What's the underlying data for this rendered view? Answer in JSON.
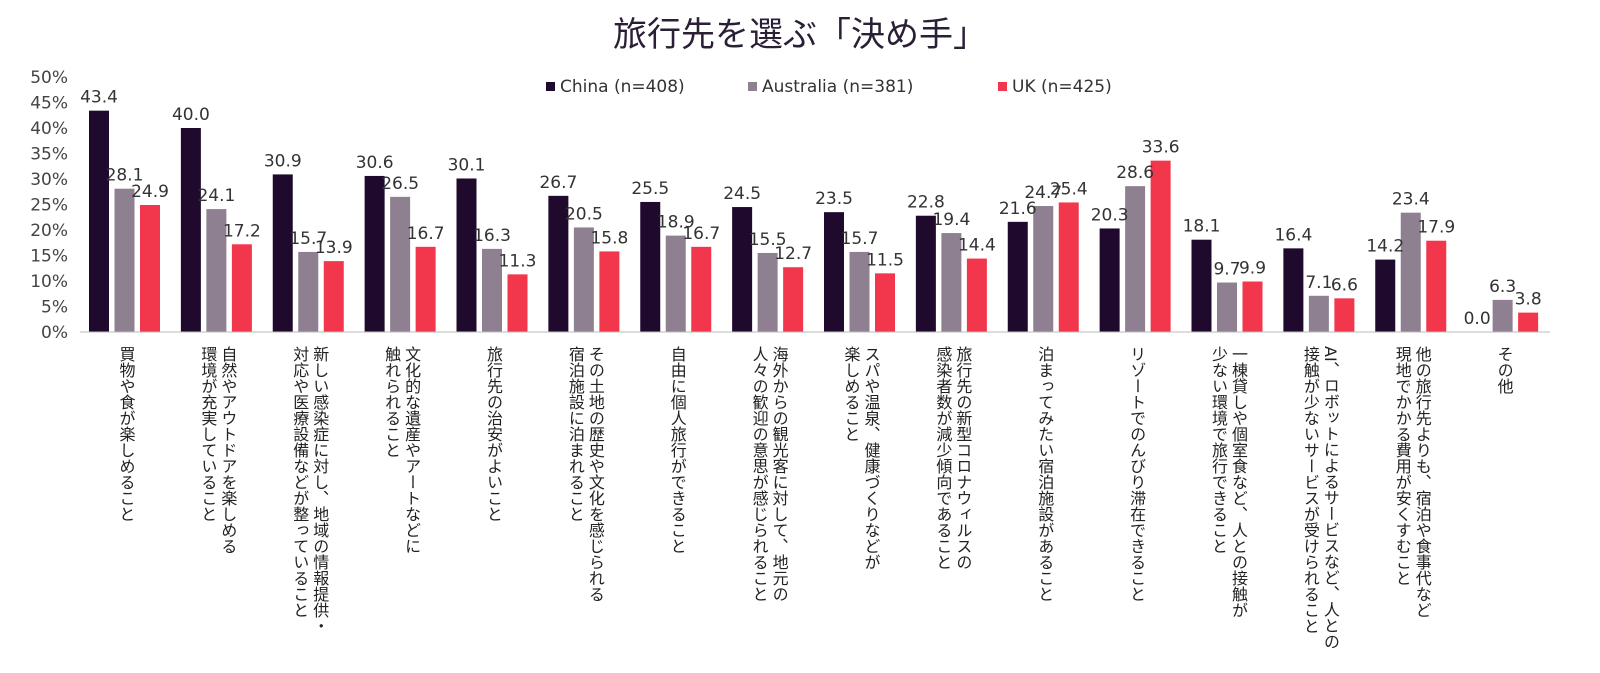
{
  "chart_data": {
    "type": "bar",
    "title": "旅行先を選ぶ「決め手」",
    "xlabel": "",
    "ylabel": "",
    "ylim": [
      0,
      50
    ],
    "yticks": [
      "0%",
      "5%",
      "10%",
      "15%",
      "20%",
      "25%",
      "30%",
      "35%",
      "40%",
      "45%",
      "50%"
    ],
    "grid": false,
    "legend_position": "top",
    "categories": [
      [
        "買物や食が楽しめること"
      ],
      [
        "自然やアウトドアを楽しめる",
        "環境が充実していること"
      ],
      [
        "新しい感染症に対し、地域の情報提供・",
        "対応や医療設備などが整っていること"
      ],
      [
        "文化的な遺産やアートなどに",
        "触れられること"
      ],
      [
        "旅行先の治安がよいこと"
      ],
      [
        "その土地の歴史や文化を感じられる",
        "宿泊施設に泊まれること"
      ],
      [
        "自由に個人旅行ができること"
      ],
      [
        "海外からの観光客に対して、地元の",
        "人々の歓迎の意思が感じられること"
      ],
      [
        "スパや温泉、健康づくりなどが",
        "楽しめること"
      ],
      [
        "旅行先の新型コロナウィルスの",
        "感染者数が減少傾向であること"
      ],
      [
        "泊まってみたい宿泊施設があること"
      ],
      [
        "リゾートでのんびり滞在できること"
      ],
      [
        "一棟貸しや個室食など、人との接触が",
        "少ない環境で旅行できること"
      ],
      [
        "AI、ロボットによるサービスなど、人との",
        "接触が少ないサービスが受けられること"
      ],
      [
        "他の旅行先よりも、宿泊や食事代など",
        "現地でかかる費用が安くすむこと"
      ],
      [
        "その他"
      ]
    ],
    "series": [
      {
        "name": "China (n=408)",
        "color": "#1f0a2e",
        "values": [
          43.4,
          40.0,
          30.9,
          30.6,
          30.1,
          26.7,
          25.5,
          24.5,
          23.5,
          22.8,
          21.6,
          20.3,
          18.1,
          16.4,
          14.2,
          0.0
        ],
        "labels": [
          "43.4",
          "40.0",
          "30.9",
          "30.6",
          "30.1",
          "26.7",
          "25.5",
          "24.5",
          "23.5",
          "22.8",
          "21.6",
          "20.3",
          "18.1",
          "16.4",
          "14.2",
          "0.0"
        ]
      },
      {
        "name": "Australia (n=381)",
        "color": "#8e8091",
        "values": [
          28.1,
          24.1,
          15.7,
          26.5,
          16.3,
          20.5,
          18.9,
          15.5,
          15.7,
          19.4,
          24.7,
          28.6,
          9.7,
          7.1,
          23.4,
          6.3
        ],
        "labels": [
          "28.1",
          "24.1",
          "15.7",
          "26.5",
          "16.3",
          "20.5",
          "18.9",
          "15.5",
          "15.7",
          "19.4",
          "24.7",
          "28.6",
          "9.7",
          "7.1",
          "23.4",
          "6.3"
        ]
      },
      {
        "name": "UK (n=425)",
        "color": "#f2364b",
        "values": [
          24.9,
          17.2,
          13.9,
          16.7,
          11.3,
          15.8,
          16.7,
          12.7,
          11.5,
          14.4,
          25.4,
          33.6,
          9.9,
          6.6,
          17.9,
          3.8
        ],
        "labels": [
          "24.9",
          "17.2",
          "13.9",
          "16.7",
          "11.3",
          "15.8",
          "16.7",
          "12.7",
          "11.5",
          "14.4",
          "25.4",
          "33.6",
          "9.9",
          "6.6",
          "17.9",
          "3.8"
        ]
      }
    ]
  }
}
